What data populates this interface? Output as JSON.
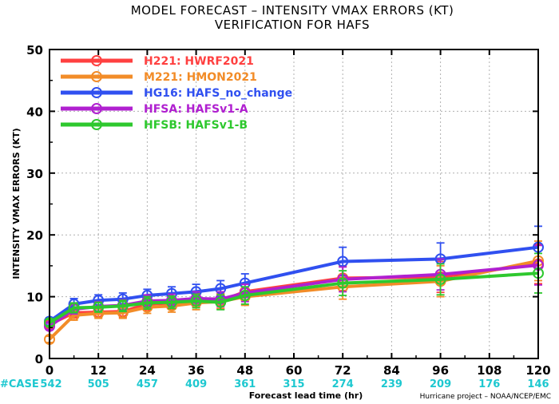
{
  "title_line1": "MODEL FORECAST – INTENSITY VMAX ERRORS (KT)",
  "title_line2": "VERIFICATION FOR HAFS",
  "credit": "Hurricane project – NOAA/NCEP/EMC",
  "case_prefix": "#CASE",
  "case_color": "#1ec8d0",
  "chart_data": {
    "type": "line",
    "xlabel": "Forecast lead time (hr)",
    "ylabel": "INTENSITY VMAX ERRORS (KT)",
    "xlim": [
      0,
      120
    ],
    "ylim": [
      0,
      50
    ],
    "x_ticks": [
      0,
      12,
      24,
      36,
      48,
      60,
      72,
      84,
      96,
      108,
      120
    ],
    "y_ticks": [
      0,
      10,
      20,
      30,
      40,
      50
    ],
    "grid": true,
    "legend_position": "top-left",
    "cases": [
      {
        "x": 0,
        "n": "542"
      },
      {
        "x": 12,
        "n": "505"
      },
      {
        "x": 24,
        "n": "457"
      },
      {
        "x": 36,
        "n": "409"
      },
      {
        "x": 48,
        "n": "361"
      },
      {
        "x": 60,
        "n": "315"
      },
      {
        "x": 72,
        "n": "274"
      },
      {
        "x": 84,
        "n": "239"
      },
      {
        "x": 96,
        "n": "209"
      },
      {
        "x": 108,
        "n": "176"
      },
      {
        "x": 120,
        "n": "146"
      }
    ],
    "series": [
      {
        "id": "H221",
        "name": "H221:  HWRF2021",
        "color": "#ff4040",
        "x": [
          0,
          6,
          12,
          18,
          24,
          30,
          36,
          42,
          48,
          72,
          96,
          120
        ],
        "y": [
          5.5,
          7.4,
          7.5,
          7.6,
          8.8,
          9.0,
          9.4,
          9.3,
          10.8,
          13.0,
          13.2,
          15.3
        ],
        "err": [
          0.5,
          0.8,
          0.8,
          0.9,
          1.0,
          1.0,
          1.1,
          1.2,
          1.4,
          2.0,
          2.5,
          3.2
        ]
      },
      {
        "id": "M221",
        "name": "M221:  HMON2021",
        "color": "#f28c28",
        "x": [
          0,
          6,
          12,
          18,
          24,
          30,
          36,
          42,
          48,
          72,
          96,
          120
        ],
        "y": [
          3.1,
          7.0,
          7.3,
          7.4,
          8.3,
          8.5,
          9.0,
          9.2,
          10.0,
          11.6,
          12.5,
          15.8
        ],
        "err": [
          0.5,
          0.8,
          0.8,
          0.9,
          1.0,
          1.0,
          1.1,
          1.2,
          1.4,
          2.0,
          2.5,
          3.2
        ]
      },
      {
        "id": "HG16",
        "name": "HG16:  HAFS_no_change",
        "color": "#3050f0",
        "x": [
          0,
          6,
          12,
          18,
          24,
          30,
          36,
          42,
          48,
          72,
          96,
          120
        ],
        "y": [
          6.0,
          8.8,
          9.4,
          9.6,
          10.2,
          10.5,
          10.8,
          11.3,
          12.2,
          15.7,
          16.1,
          18.0
        ],
        "err": [
          0.6,
          0.9,
          0.9,
          1.0,
          1.0,
          1.1,
          1.2,
          1.3,
          1.5,
          2.3,
          2.6,
          3.4
        ]
      },
      {
        "id": "HFSA",
        "name": "HFSA:  HAFSv1-A",
        "color": "#b020d0",
        "x": [
          0,
          6,
          12,
          18,
          24,
          30,
          36,
          42,
          48,
          72,
          96,
          120
        ],
        "y": [
          5.2,
          8.0,
          8.4,
          8.6,
          9.3,
          9.4,
          9.7,
          9.6,
          10.6,
          12.8,
          13.6,
          15.1
        ],
        "err": [
          0.5,
          0.8,
          0.8,
          0.9,
          1.0,
          1.0,
          1.1,
          1.2,
          1.4,
          2.0,
          2.5,
          3.2
        ]
      },
      {
        "id": "HFSB",
        "name": "HFSB:  HAFSv1-B",
        "color": "#2ec82e",
        "x": [
          0,
          6,
          12,
          18,
          24,
          30,
          36,
          42,
          48,
          72,
          96,
          120
        ],
        "y": [
          5.8,
          8.2,
          8.3,
          8.5,
          9.0,
          9.1,
          9.3,
          9.1,
          10.2,
          12.2,
          12.8,
          13.8
        ],
        "err": [
          0.5,
          0.8,
          0.8,
          0.9,
          1.0,
          1.0,
          1.1,
          1.2,
          1.4,
          2.0,
          2.5,
          3.2
        ]
      }
    ]
  }
}
